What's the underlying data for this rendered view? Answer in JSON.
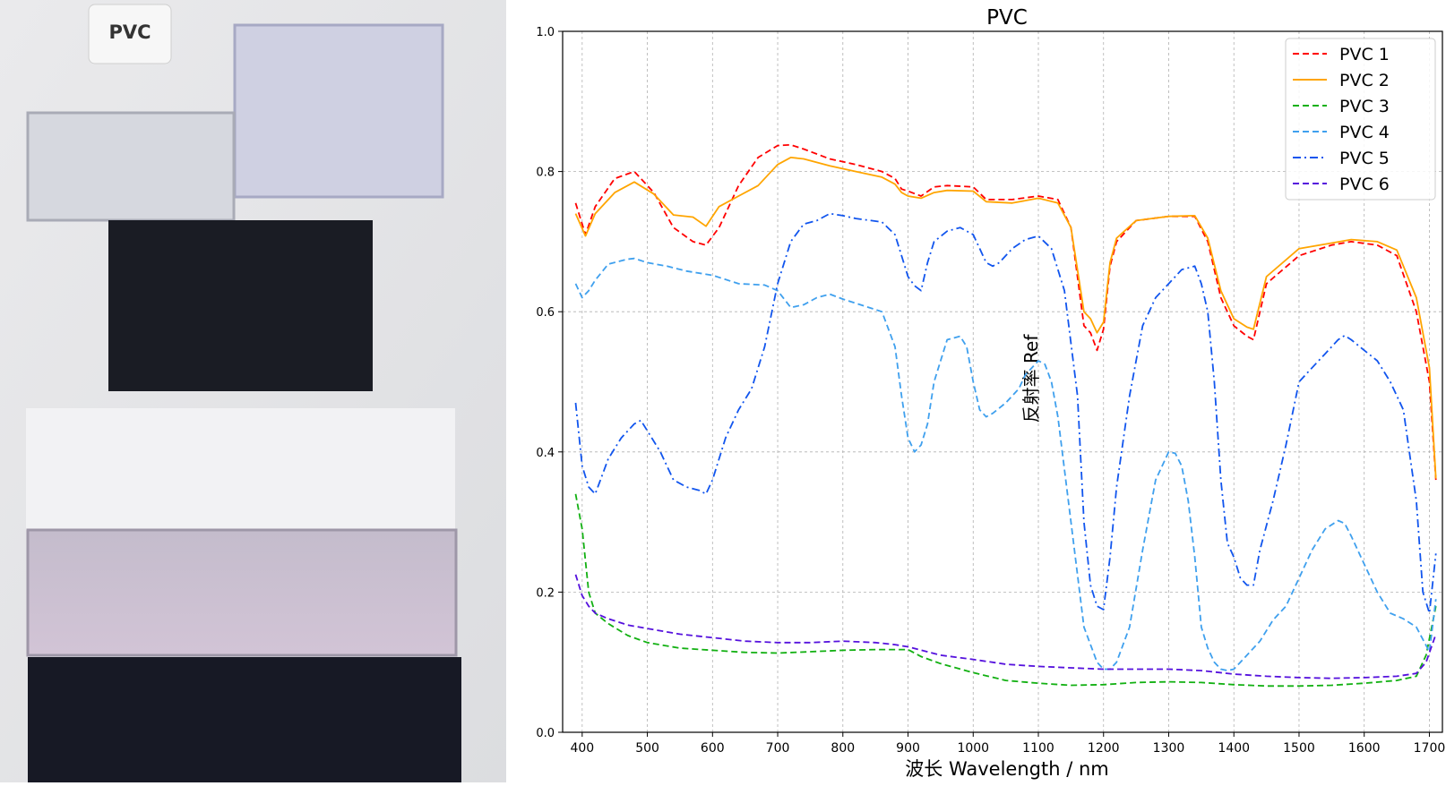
{
  "photo": {
    "label": "PVC",
    "samples": [
      {
        "name": "sample-clear-grey",
        "color": "#d6d8df"
      },
      {
        "name": "sample-lavender",
        "color": "#cfd0e2"
      },
      {
        "name": "sample-black",
        "color": "#1a1c24"
      },
      {
        "name": "sample-white",
        "color": "#f2f2f4"
      },
      {
        "name": "sample-purple",
        "color": "#c9bdd0"
      },
      {
        "name": "sample-black-bottom",
        "color": "#171925"
      }
    ]
  },
  "chart_data": {
    "type": "line",
    "title": "PVC",
    "xlabel": "波长 Wavelength / nm",
    "ylabel": "反射率 Ref",
    "xlim": [
      370,
      1720
    ],
    "ylim": [
      0.0,
      1.0
    ],
    "xticks": [
      400,
      500,
      600,
      700,
      800,
      900,
      1000,
      1100,
      1200,
      1300,
      1400,
      1500,
      1600,
      1700
    ],
    "yticks": [
      "0.0",
      "0.2",
      "0.4",
      "0.6",
      "0.8",
      "1.0"
    ],
    "grid": true,
    "legend_position": "top-right",
    "series": [
      {
        "name": "PVC 1",
        "color": "#ff0000",
        "style": "dashed",
        "x": [
          390,
          405,
          420,
          450,
          480,
          510,
          540,
          570,
          590,
          610,
          640,
          670,
          700,
          720,
          740,
          780,
          820,
          860,
          880,
          890,
          900,
          920,
          940,
          960,
          1000,
          1020,
          1060,
          1100,
          1130,
          1150,
          1170,
          1180,
          1190,
          1200,
          1210,
          1220,
          1250,
          1300,
          1340,
          1360,
          1380,
          1400,
          1420,
          1430,
          1450,
          1500,
          1550,
          1580,
          1620,
          1650,
          1680,
          1700,
          1710
        ],
        "y": [
          0.755,
          0.71,
          0.75,
          0.79,
          0.8,
          0.77,
          0.72,
          0.7,
          0.695,
          0.72,
          0.78,
          0.82,
          0.837,
          0.838,
          0.832,
          0.818,
          0.81,
          0.8,
          0.79,
          0.775,
          0.772,
          0.765,
          0.778,
          0.78,
          0.778,
          0.76,
          0.76,
          0.765,
          0.76,
          0.72,
          0.58,
          0.57,
          0.545,
          0.575,
          0.665,
          0.7,
          0.73,
          0.736,
          0.736,
          0.7,
          0.62,
          0.58,
          0.565,
          0.56,
          0.64,
          0.68,
          0.695,
          0.7,
          0.695,
          0.68,
          0.6,
          0.5,
          0.36
        ]
      },
      {
        "name": "PVC 2",
        "color": "#ffa500",
        "style": "solid",
        "x": [
          390,
          405,
          420,
          450,
          480,
          510,
          540,
          570,
          590,
          610,
          640,
          670,
          700,
          720,
          740,
          780,
          820,
          860,
          880,
          890,
          900,
          920,
          940,
          960,
          1000,
          1020,
          1060,
          1100,
          1130,
          1150,
          1170,
          1180,
          1190,
          1200,
          1210,
          1220,
          1250,
          1300,
          1340,
          1360,
          1380,
          1400,
          1420,
          1430,
          1450,
          1500,
          1550,
          1580,
          1620,
          1650,
          1680,
          1700,
          1710
        ],
        "y": [
          0.74,
          0.708,
          0.74,
          0.77,
          0.785,
          0.768,
          0.738,
          0.735,
          0.722,
          0.75,
          0.765,
          0.78,
          0.81,
          0.82,
          0.818,
          0.808,
          0.8,
          0.792,
          0.782,
          0.77,
          0.765,
          0.762,
          0.77,
          0.773,
          0.772,
          0.757,
          0.755,
          0.762,
          0.755,
          0.72,
          0.6,
          0.59,
          0.57,
          0.585,
          0.67,
          0.705,
          0.73,
          0.736,
          0.737,
          0.705,
          0.63,
          0.59,
          0.578,
          0.575,
          0.65,
          0.69,
          0.698,
          0.703,
          0.7,
          0.688,
          0.62,
          0.52,
          0.362
        ]
      },
      {
        "name": "PVC 3",
        "color": "#12b012",
        "style": "dashed",
        "x": [
          390,
          400,
          410,
          420,
          440,
          470,
          500,
          550,
          600,
          650,
          700,
          750,
          800,
          850,
          900,
          920,
          950,
          1000,
          1050,
          1100,
          1150,
          1200,
          1250,
          1300,
          1350,
          1400,
          1450,
          1500,
          1550,
          1600,
          1650,
          1680,
          1695,
          1710
        ],
        "y": [
          0.34,
          0.29,
          0.2,
          0.17,
          0.155,
          0.138,
          0.128,
          0.12,
          0.117,
          0.114,
          0.113,
          0.115,
          0.117,
          0.118,
          0.118,
          0.108,
          0.098,
          0.085,
          0.074,
          0.07,
          0.067,
          0.068,
          0.071,
          0.072,
          0.071,
          0.068,
          0.066,
          0.066,
          0.067,
          0.07,
          0.074,
          0.08,
          0.11,
          0.18
        ]
      },
      {
        "name": "PVC 4",
        "color": "#3fa0ee",
        "style": "dashed",
        "x": [
          390,
          400,
          410,
          420,
          440,
          470,
          480,
          500,
          530,
          560,
          600,
          640,
          680,
          700,
          720,
          740,
          760,
          780,
          800,
          820,
          860,
          880,
          890,
          900,
          910,
          920,
          930,
          940,
          960,
          980,
          990,
          1000,
          1010,
          1020,
          1030,
          1050,
          1070,
          1080,
          1100,
          1110,
          1120,
          1130,
          1150,
          1170,
          1190,
          1200,
          1210,
          1220,
          1240,
          1260,
          1280,
          1300,
          1310,
          1320,
          1330,
          1340,
          1350,
          1360,
          1370,
          1380,
          1390,
          1400,
          1410,
          1420,
          1440,
          1460,
          1480,
          1500,
          1520,
          1540,
          1560,
          1570,
          1580,
          1600,
          1620,
          1640,
          1660,
          1680,
          1700,
          1710
        ],
        "y": [
          0.64,
          0.62,
          0.63,
          0.645,
          0.668,
          0.675,
          0.676,
          0.67,
          0.665,
          0.658,
          0.652,
          0.64,
          0.638,
          0.63,
          0.606,
          0.61,
          0.62,
          0.625,
          0.618,
          0.612,
          0.6,
          0.55,
          0.48,
          0.42,
          0.4,
          0.41,
          0.44,
          0.5,
          0.56,
          0.565,
          0.55,
          0.5,
          0.46,
          0.45,
          0.455,
          0.47,
          0.49,
          0.51,
          0.53,
          0.525,
          0.5,
          0.45,
          0.3,
          0.15,
          0.1,
          0.09,
          0.09,
          0.1,
          0.15,
          0.26,
          0.36,
          0.4,
          0.398,
          0.38,
          0.33,
          0.25,
          0.15,
          0.12,
          0.1,
          0.09,
          0.088,
          0.09,
          0.1,
          0.11,
          0.13,
          0.16,
          0.18,
          0.22,
          0.26,
          0.29,
          0.302,
          0.298,
          0.28,
          0.24,
          0.2,
          0.17,
          0.162,
          0.15,
          0.115,
          0.19
        ]
      },
      {
        "name": "PVC 5",
        "color": "#1155ee",
        "style": "dashdot",
        "x": [
          390,
          400,
          410,
          420,
          440,
          460,
          480,
          490,
          500,
          520,
          540,
          560,
          580,
          590,
          600,
          620,
          640,
          660,
          680,
          700,
          720,
          740,
          760,
          780,
          800,
          820,
          860,
          880,
          890,
          900,
          910,
          920,
          930,
          940,
          960,
          980,
          1000,
          1020,
          1030,
          1040,
          1060,
          1080,
          1100,
          1120,
          1140,
          1160,
          1170,
          1180,
          1190,
          1200,
          1210,
          1220,
          1240,
          1260,
          1280,
          1300,
          1320,
          1340,
          1350,
          1360,
          1370,
          1380,
          1390,
          1400,
          1410,
          1420,
          1430,
          1440,
          1460,
          1480,
          1500,
          1520,
          1540,
          1560,
          1570,
          1580,
          1600,
          1620,
          1640,
          1660,
          1680,
          1690,
          1700,
          1710
        ],
        "y": [
          0.47,
          0.38,
          0.35,
          0.34,
          0.39,
          0.42,
          0.44,
          0.445,
          0.43,
          0.4,
          0.36,
          0.35,
          0.345,
          0.34,
          0.36,
          0.42,
          0.46,
          0.49,
          0.55,
          0.64,
          0.7,
          0.725,
          0.73,
          0.74,
          0.737,
          0.733,
          0.728,
          0.71,
          0.68,
          0.65,
          0.637,
          0.63,
          0.67,
          0.7,
          0.715,
          0.72,
          0.71,
          0.67,
          0.665,
          0.67,
          0.69,
          0.703,
          0.708,
          0.69,
          0.63,
          0.48,
          0.3,
          0.21,
          0.18,
          0.175,
          0.25,
          0.35,
          0.48,
          0.58,
          0.62,
          0.64,
          0.66,
          0.665,
          0.64,
          0.6,
          0.5,
          0.36,
          0.27,
          0.25,
          0.22,
          0.21,
          0.21,
          0.26,
          0.33,
          0.41,
          0.5,
          0.52,
          0.54,
          0.56,
          0.566,
          0.56,
          0.545,
          0.53,
          0.5,
          0.46,
          0.33,
          0.2,
          0.17,
          0.255
        ]
      },
      {
        "name": "PVC 6",
        "color": "#5511dd",
        "style": "dashed",
        "x": [
          390,
          400,
          410,
          420,
          440,
          470,
          500,
          550,
          600,
          650,
          700,
          750,
          800,
          850,
          880,
          900,
          950,
          1000,
          1050,
          1100,
          1150,
          1200,
          1250,
          1300,
          1350,
          1400,
          1450,
          1500,
          1550,
          1600,
          1650,
          1680,
          1695,
          1710
        ],
        "y": [
          0.225,
          0.195,
          0.18,
          0.17,
          0.162,
          0.153,
          0.148,
          0.14,
          0.135,
          0.13,
          0.128,
          0.128,
          0.13,
          0.128,
          0.125,
          0.122,
          0.11,
          0.104,
          0.097,
          0.094,
          0.092,
          0.09,
          0.09,
          0.09,
          0.088,
          0.083,
          0.08,
          0.078,
          0.077,
          0.078,
          0.08,
          0.084,
          0.1,
          0.14
        ]
      }
    ]
  }
}
